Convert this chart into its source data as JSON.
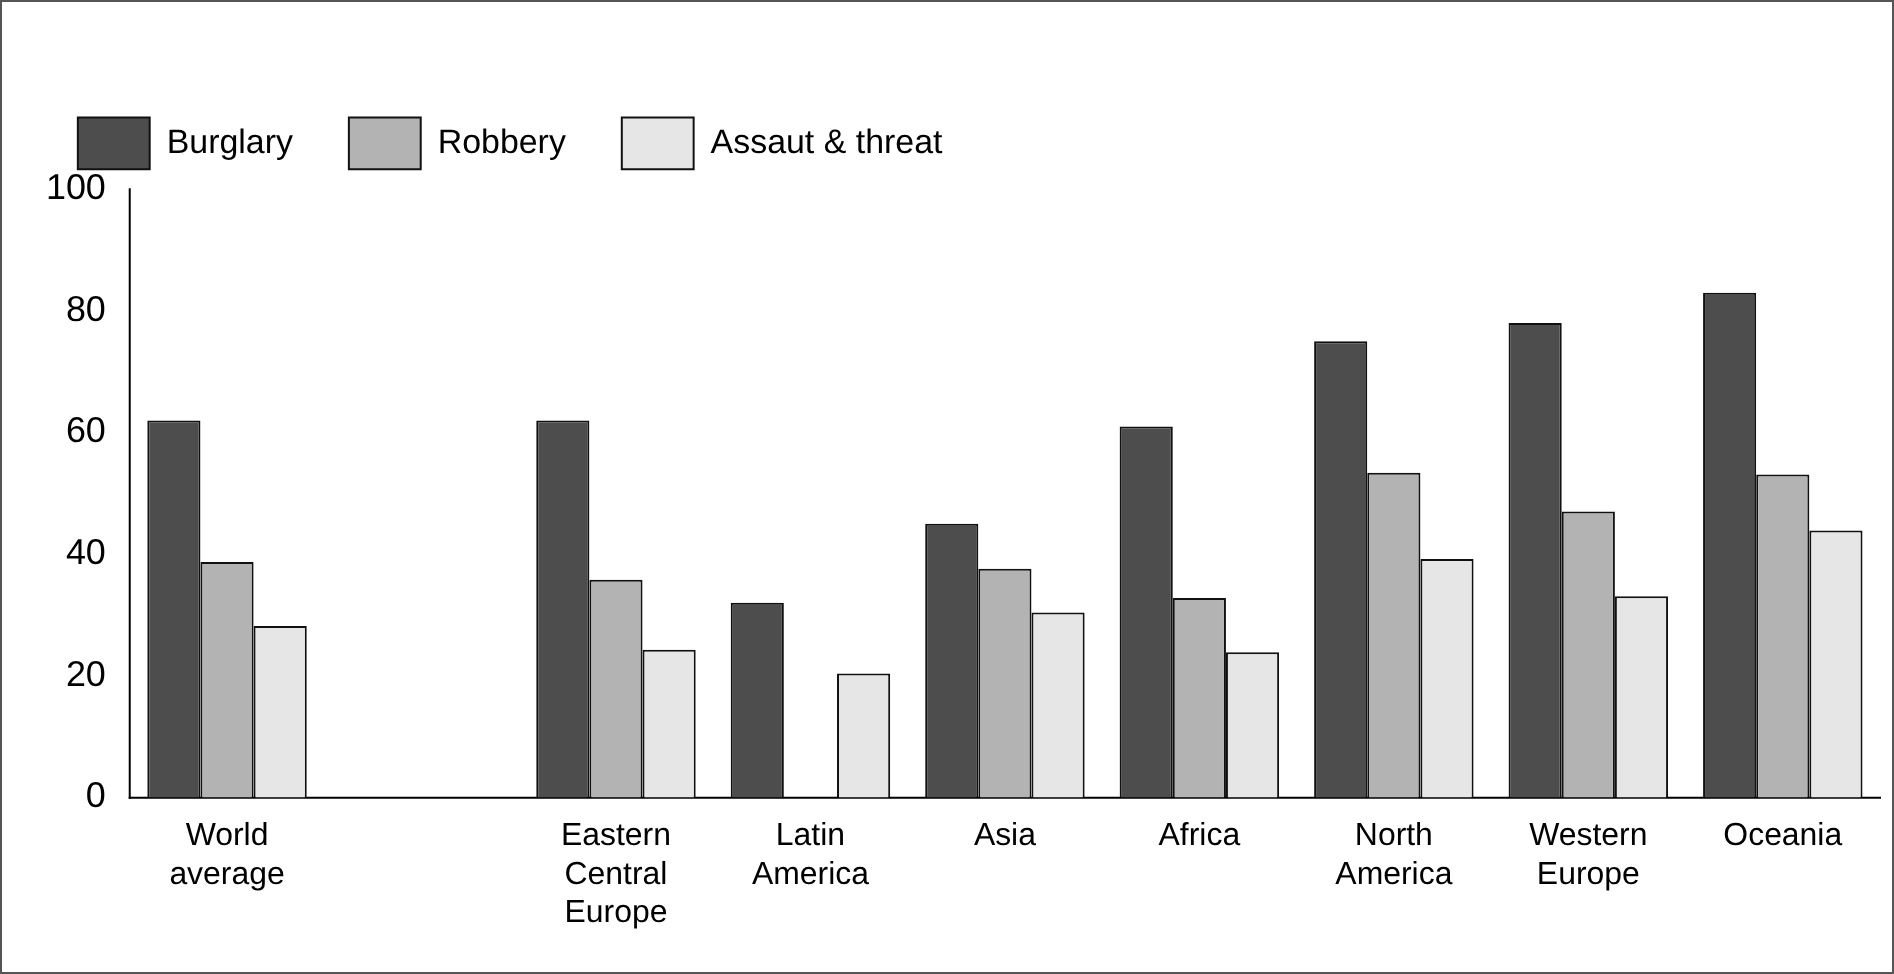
{
  "chart_data": {
    "type": "bar",
    "categories": [
      "World average",
      null,
      "Eastern Central Europe",
      "Latin America",
      "Asia",
      "Africa",
      "North America",
      "Western Europe",
      "Oceania"
    ],
    "series": [
      {
        "name": "Burglary",
        "color": "#4d4d4d",
        "values": [
          62,
          null,
          62,
          32,
          45,
          61,
          75,
          78,
          83
        ]
      },
      {
        "name": "Robbery",
        "color": "#b3b3b3",
        "values": [
          38.7,
          null,
          35.8,
          null,
          37.6,
          32.8,
          53.4,
          47,
          53.1
        ]
      },
      {
        "name": "Assaut & threat",
        "color": "#e6e6e6",
        "values": [
          28.2,
          null,
          24.3,
          20.4,
          30.4,
          23.9,
          39.2,
          33.1,
          43.9
        ]
      }
    ],
    "ylim": [
      0,
      100
    ],
    "yticks": [
      0,
      20,
      40,
      60,
      80,
      100
    ],
    "grid": false,
    "legend": "top"
  }
}
